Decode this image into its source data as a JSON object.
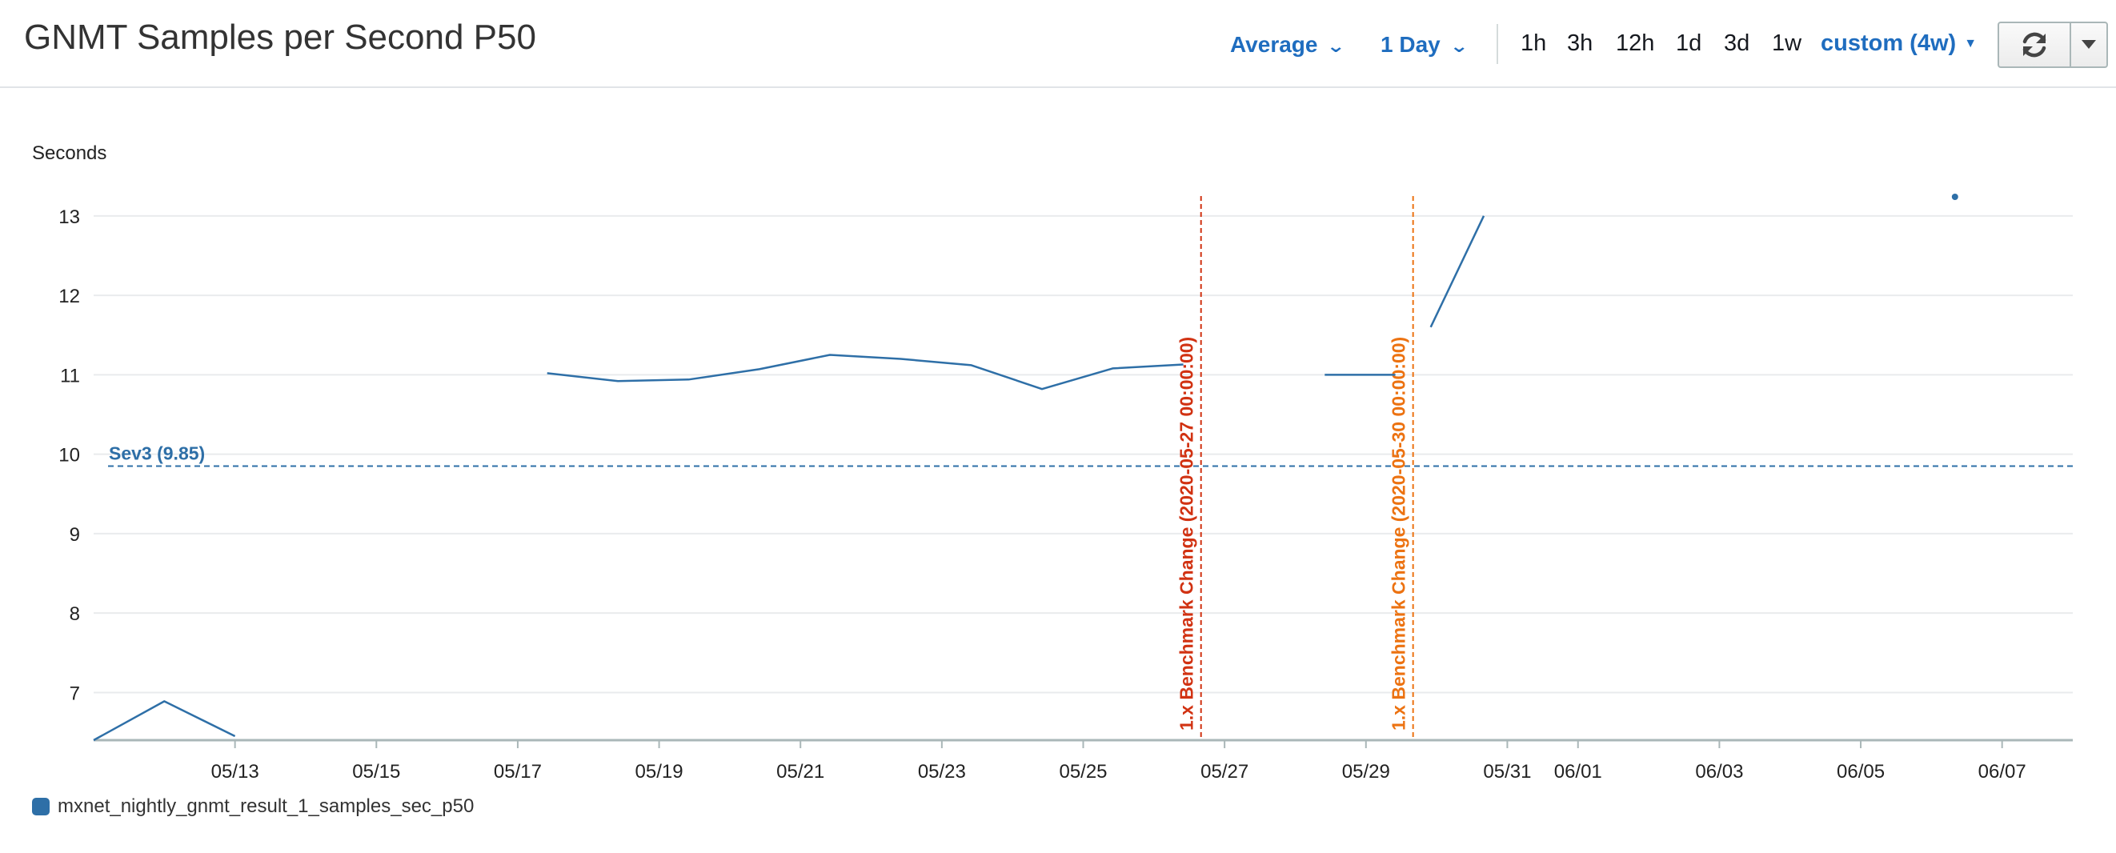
{
  "header": {
    "title": "GNMT Samples per Second P50",
    "stat_label": "Average",
    "period_label": "1 Day",
    "ranges": [
      "1h",
      "3h",
      "12h",
      "1d",
      "3d",
      "1w"
    ],
    "custom_range_label": "custom (4w)",
    "icons": {
      "refresh": "refresh-icon",
      "menu": "caret-down-icon"
    }
  },
  "colors": {
    "series": "#2e6fa7",
    "threshold": "#2e6fa7",
    "annotation_red": "#d13212",
    "annotation_orange": "#ec7211",
    "accent": "#1f6dbf"
  },
  "chart_data": {
    "type": "line",
    "unit_label": "Seconds",
    "x_axis": {
      "type": "date",
      "min": "2020-05-11",
      "max": "2020-06-08",
      "tick_dates": [
        "2020-05-13",
        "2020-05-15",
        "2020-05-17",
        "2020-05-19",
        "2020-05-21",
        "2020-05-23",
        "2020-05-25",
        "2020-05-27",
        "2020-05-29",
        "2020-05-31",
        "2020-06-01",
        "2020-06-03",
        "2020-06-05",
        "2020-06-07"
      ],
      "tick_labels": [
        "05/13",
        "05/15",
        "05/17",
        "05/19",
        "05/21",
        "05/23",
        "05/25",
        "05/27",
        "05/29",
        "05/31",
        "06/01",
        "06/03",
        "06/05",
        "06/07"
      ]
    },
    "y_axis": {
      "min": 6.4,
      "max": 13.25,
      "ticks": [
        7,
        8,
        9,
        10,
        11,
        12,
        13
      ]
    },
    "grid": true,
    "legend_position": "bottom-left",
    "series": [
      {
        "name": "mxnet_nightly_gnmt_result_1_samples_sec_p50",
        "segments": [
          [
            [
              "2020-05-11T00:00",
              6.4
            ],
            [
              "2020-05-12T00:00",
              6.89
            ],
            [
              "2020-05-13T00:00",
              6.45
            ]
          ],
          [
            [
              "2020-05-17T10:00",
              11.02
            ],
            [
              "2020-05-18T10:00",
              10.92
            ],
            [
              "2020-05-19T10:00",
              10.94
            ],
            [
              "2020-05-20T10:00",
              11.07
            ],
            [
              "2020-05-21T10:00",
              11.25
            ],
            [
              "2020-05-22T10:00",
              11.2
            ],
            [
              "2020-05-23T10:00",
              11.12
            ],
            [
              "2020-05-24T10:00",
              10.82
            ],
            [
              "2020-05-25T10:00",
              11.08
            ],
            [
              "2020-05-26T10:00",
              11.13
            ]
          ],
          [
            [
              "2020-05-28T10:00",
              11.0
            ],
            [
              "2020-05-29T10:00",
              11.0
            ]
          ],
          [
            [
              "2020-05-29T22:00",
              11.6
            ],
            [
              "2020-05-30T16:00",
              13.0
            ]
          ]
        ],
        "points": [
          [
            "2020-06-06T08:00",
            13.24
          ]
        ]
      }
    ],
    "thresholds": [
      {
        "label": "Sev3 (9.85)",
        "value": 9.85
      }
    ],
    "annotations": [
      {
        "label": "1.x Benchmark Change (2020-05-27 00:00:00)",
        "date": "2020-05-26T16:00",
        "color": "#d13212"
      },
      {
        "label": "1.x Benchmark Change (2020-05-30 00:00:00)",
        "date": "2020-05-29T16:00",
        "color": "#ec7211"
      }
    ]
  }
}
